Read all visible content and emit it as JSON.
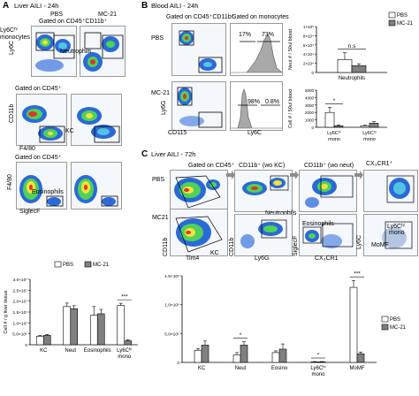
{
  "panels": {
    "A": {
      "label": "A",
      "title": "Liver AILI - 24h",
      "col_pbs": "PBS",
      "col_mc21": "MC-21",
      "gate1": "Gated on CD45⁺CD11b⁺",
      "ly6c_hi": "Ly6Cʰⁱ",
      "monocytes": "monocytes",
      "neutrophils": "Neutrophils",
      "ly6c_axis": "Ly6C",
      "gate2": "Gated on CD45⁺",
      "kc": "KC",
      "cd11b_axis": "CD11b",
      "f480_axis": "F4/80",
      "gate3": "Gated on CD45⁺",
      "eosinophils": "Eosinophils",
      "f480_axis2": "F4/80",
      "siglecf_axis": "SiglecF"
    },
    "B": {
      "label": "B",
      "title": "Blood AILI - 24h",
      "gate1": "Gated on CD45⁺CD11b⁺",
      "gate2": "Gated on monocytes",
      "pbs": "PBS",
      "mc21": "MC-21",
      "pct17": "17%",
      "pct73": "73%",
      "pct98": "98%",
      "pct08": "0.8%",
      "ly6g_axis": "Ly6G",
      "cd115_axis": "CD115",
      "ly6c_axis": "Ly6C"
    },
    "C": {
      "label": "C",
      "title": "Liver AILI - 72h",
      "gate_cd45": "Gated on CD45⁺",
      "gate_cd11b_kc": "CD11b⁺ (wo KC)",
      "gate_cd11b_neut": "CD11b⁺ (wo neut)",
      "gate_cx3cr1": "CX₃CR1⁺",
      "pbs": "PBS",
      "mc21": "MC21",
      "neutrophils": "Neutrophils",
      "eosinophils": "Eosinophils",
      "kc": "KC",
      "ly6c_hi": "Ly6Cʰⁱ",
      "mono": "mono",
      "momf": "MoMF",
      "cd11b_axis": "CD11b",
      "tim4_axis": "Tim4",
      "cd11b_axis2": "CD11b",
      "ly6g_axis": "Ly6G",
      "siglecf_axis": "SiglecF",
      "cx3cr1_axis": "CX₃CR1",
      "ly6c_axis": "Ly6C"
    }
  },
  "chart_data": [
    {
      "id": "A-bar",
      "type": "bar",
      "categories": [
        "KC",
        "Neut",
        "Eosinophils",
        "Ly6Cʰⁱ mono"
      ],
      "series": [
        {
          "name": "PBS",
          "color": "#ffffff",
          "values": [
            3900000.0,
            17500000.0,
            13500000.0,
            18000000.0
          ],
          "errors": [
            400000.0,
            1600000.0,
            4000000.0,
            1000000.0
          ]
        },
        {
          "name": "MC-21",
          "color": "#808080",
          "values": [
            4300000.0,
            16500000.0,
            14200000.0,
            1800000.0
          ],
          "errors": [
            400000.0,
            1400000.0,
            2000000.0,
            500000.0
          ]
        }
      ],
      "ylabel": "Cell # / g liver tissue",
      "ytick_labels": [
        "0",
        "5.0×10⁶",
        "1.0×10⁷",
        "1.5×10⁷",
        "2.0×10⁷",
        "2.5×10⁷",
        "3.0×10⁷"
      ],
      "ylim": [
        0,
        30000000.0
      ],
      "significance": [
        {
          "category": "Ly6Cʰⁱ mono",
          "label": "***"
        }
      ],
      "legend": "top-right"
    },
    {
      "id": "B-bar-neut",
      "type": "bar",
      "categories": [
        "Neutrophils"
      ],
      "series": [
        {
          "name": "PBS",
          "color": "#ffffff",
          "values": [
            28000.0
          ],
          "errors": [
            15000.0
          ]
        },
        {
          "name": "MC-21",
          "color": "#808080",
          "values": [
            15000.0
          ],
          "errors": [
            4000.0
          ]
        }
      ],
      "ylabel": "Neut # / 50ul blood",
      "ytick_labels": [
        "0",
        "2×10⁴",
        "4×10⁴",
        "6×10⁴",
        "8×10⁴",
        "1×10⁵"
      ],
      "ylim": [
        0,
        100000.0
      ],
      "significance": [
        {
          "label": "n.s"
        }
      ],
      "legend": "top-right"
    },
    {
      "id": "B-bar-mono",
      "type": "bar",
      "categories": [
        "Ly6Cʰⁱ mono",
        "Ly6Cˡᵒ mono"
      ],
      "series": [
        {
          "name": "PBS",
          "color": "#ffffff",
          "values": [
            2000,
            200
          ],
          "errors": [
            700,
            80
          ]
        },
        {
          "name": "MC-21",
          "color": "#808080",
          "values": [
            200,
            550
          ],
          "errors": [
            80,
            200
          ]
        }
      ],
      "ylabel": "Cell # / 50ul blood",
      "ytick_labels": [
        "0",
        "1000",
        "2000",
        "3000",
        "4000",
        "5000"
      ],
      "ylim": [
        0,
        5000
      ],
      "significance": [
        {
          "category": "Ly6Cʰⁱ mono",
          "label": "*"
        }
      ],
      "legend": "none"
    },
    {
      "id": "C-bar",
      "type": "bar",
      "categories": [
        "KC",
        "Neut",
        "Eosino",
        "Ly6Cʰⁱ mono",
        "MoMF"
      ],
      "series": [
        {
          "name": "PBS",
          "color": "#ffffff",
          "values": [
            210000.0,
            130000.0,
            170000.0,
            10000.0,
            1300000.0
          ],
          "errors": [
            30000.0,
            40000.0,
            30000.0,
            5000.0,
            120000.0
          ]
        },
        {
          "name": "MC-21",
          "color": "#808080",
          "values": [
            300000.0,
            300000.0,
            230000.0,
            10000.0,
            150000.0
          ],
          "errors": [
            70000.0,
            60000.0,
            90000.0,
            5000.0,
            30000.0
          ]
        }
      ],
      "ytick_labels": [
        "0",
        "5.0×10⁵",
        "1.0×10⁶",
        "1.5×10⁶"
      ],
      "ylim": [
        0,
        1500000.0
      ],
      "significance": [
        {
          "category": "Neut",
          "label": "*"
        },
        {
          "category": "Ly6Cʰⁱ mono",
          "label": "*"
        },
        {
          "category": "MoMF",
          "label": "***"
        }
      ],
      "legend": "right"
    }
  ],
  "colors": {
    "pbs": "#ffffff",
    "mc21": "#808080",
    "arrow": "#8c8c8c"
  }
}
